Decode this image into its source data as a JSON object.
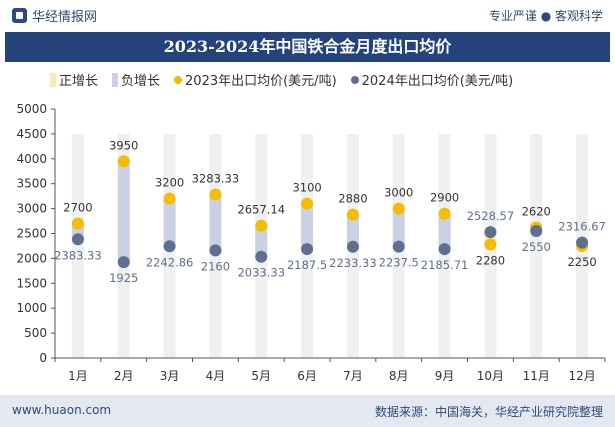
{
  "header": {
    "brand": "华经情报网",
    "tagline": "专业严谨 ● 客观科学"
  },
  "chart_data": {
    "type": "line",
    "title": "2023-2024年中国铁合金月度出口均价",
    "categories": [
      "1月",
      "2月",
      "3月",
      "4月",
      "5月",
      "6月",
      "7月",
      "8月",
      "9月",
      "10月",
      "11月",
      "12月"
    ],
    "series": [
      {
        "name": "2023年出口均价(美元/吨)",
        "color": "#f5bd00",
        "values": [
          2700,
          3950,
          3200,
          3283.33,
          2657.14,
          3100,
          2880,
          3000,
          2900,
          2280,
          2620,
          2250
        ]
      },
      {
        "name": "2024年出口均价(美元/吨)",
        "color": "#5e6f8f",
        "values": [
          2383.33,
          1925,
          2242.86,
          2160,
          2033.33,
          2187.5,
          2233.33,
          2237.5,
          2185.71,
          2528.57,
          2550,
          2316.67
        ]
      }
    ],
    "legend": {
      "positive": "正增长",
      "negative": "负增长"
    },
    "colors": {
      "positive": "#fbeab6",
      "negative": "#c9d1e3"
    },
    "ylim": [
      0,
      5000
    ],
    "yticks": [
      0,
      500,
      1000,
      1500,
      2000,
      2500,
      3000,
      3500,
      4000,
      4500,
      5000
    ]
  },
  "footer": {
    "website": "www.huaon.com",
    "source": "数据来源：中国海关，华经产业研究院整理"
  }
}
